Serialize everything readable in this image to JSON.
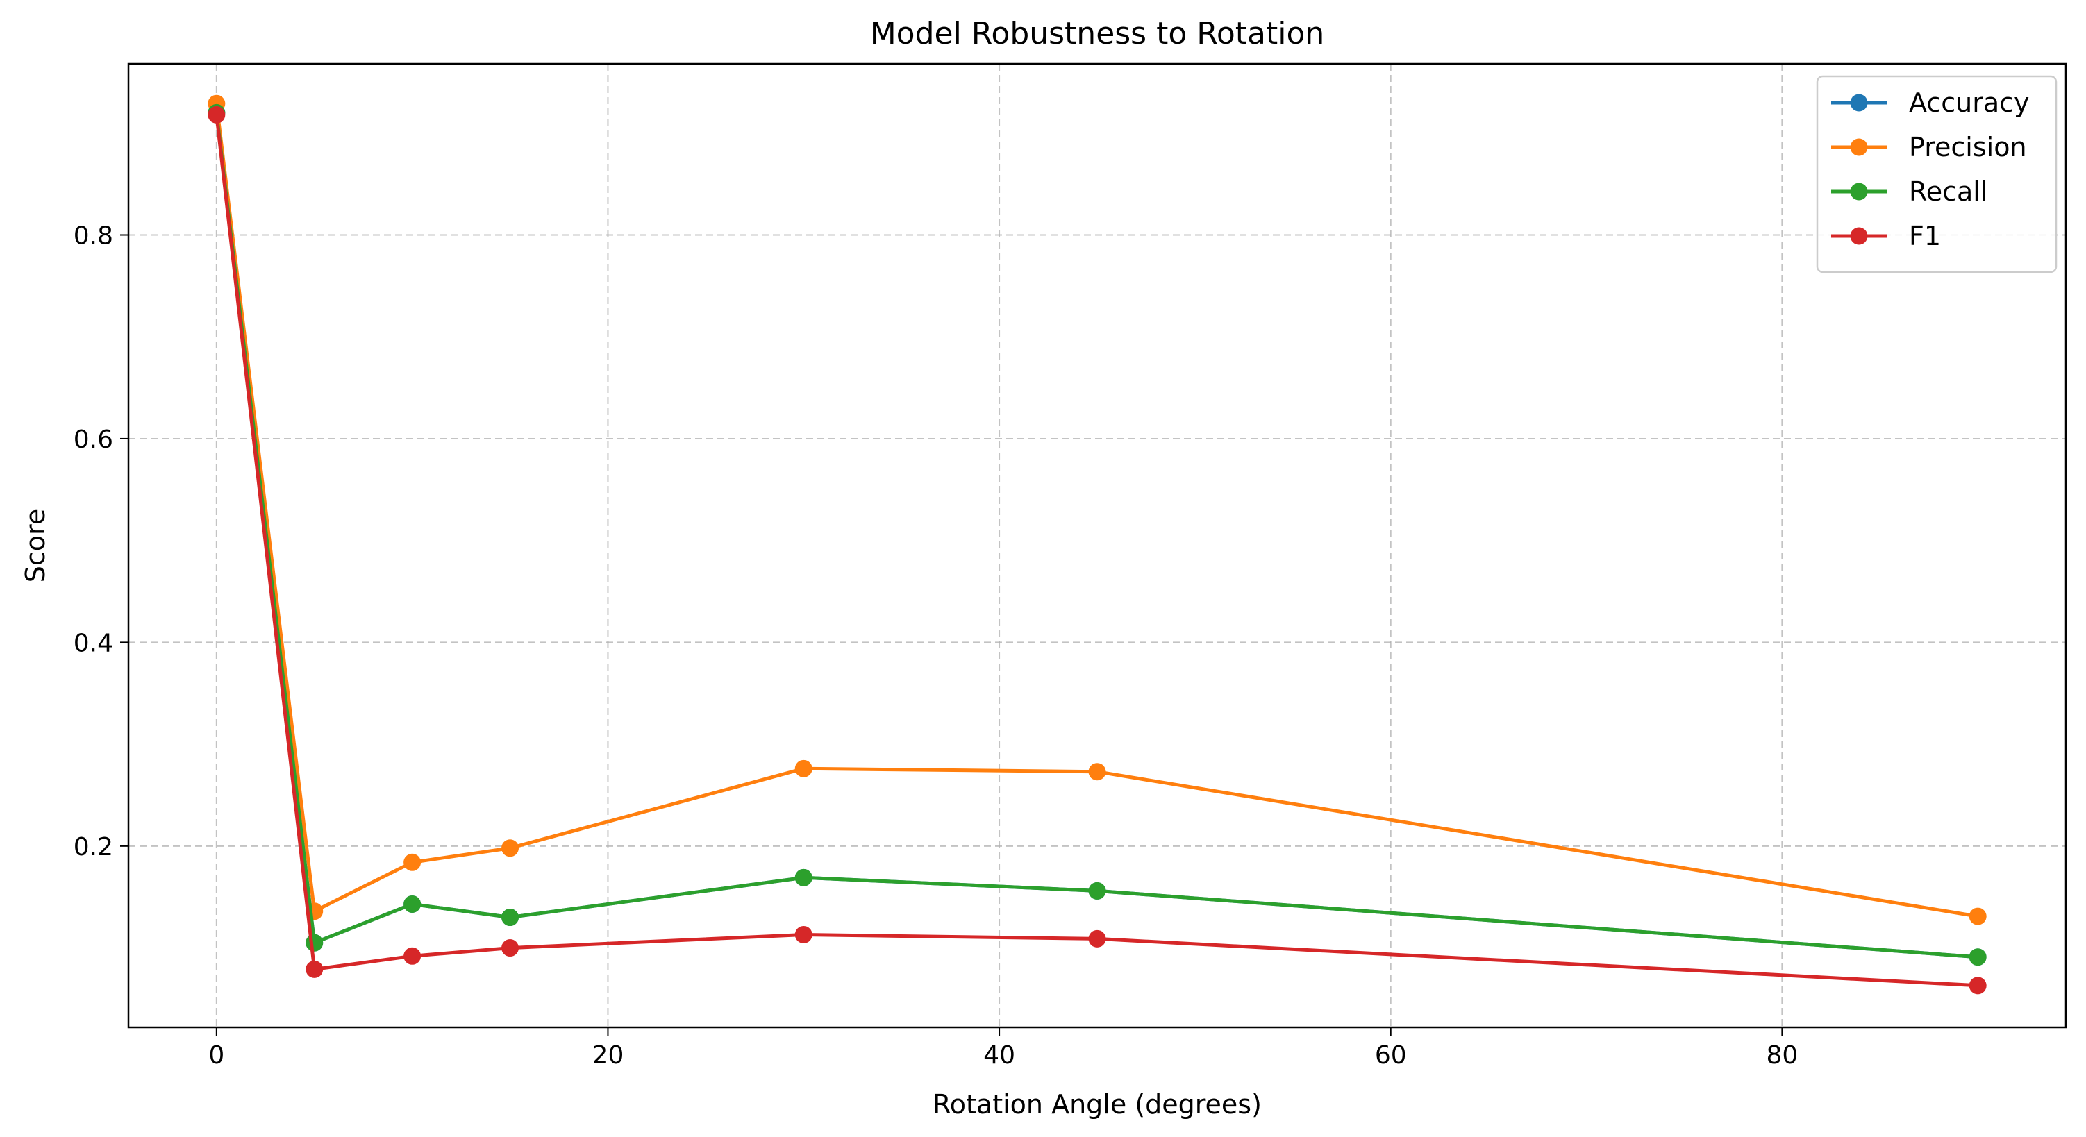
{
  "chart_data": {
    "type": "line",
    "title": "Model Robustness to Rotation",
    "xlabel": "Rotation Angle (degrees)",
    "ylabel": "Score",
    "x": [
      0,
      5,
      10,
      15,
      30,
      45,
      90
    ],
    "xlim": [
      -4.5,
      94.5
    ],
    "ylim": [
      0.022,
      0.968
    ],
    "xticks": [
      0,
      20,
      40,
      60,
      80
    ],
    "xtick_labels": [
      "0",
      "20",
      "40",
      "60",
      "80"
    ],
    "yticks": [
      0.2,
      0.4,
      0.6,
      0.8
    ],
    "ytick_labels": [
      "0.2",
      "0.4",
      "0.6",
      "0.8"
    ],
    "grid": true,
    "legend_position": "top-right",
    "series": [
      {
        "name": "Accuracy",
        "color": "#1f77b4",
        "values": [
          0.92,
          0.105,
          0.143,
          0.13,
          0.169,
          0.156,
          0.091
        ]
      },
      {
        "name": "Precision",
        "color": "#ff7f0e",
        "values": [
          0.929,
          0.136,
          0.184,
          0.198,
          0.276,
          0.273,
          0.131
        ]
      },
      {
        "name": "Recall",
        "color": "#2ca02c",
        "values": [
          0.92,
          0.105,
          0.143,
          0.13,
          0.169,
          0.156,
          0.091
        ]
      },
      {
        "name": "F1",
        "color": "#d62728",
        "values": [
          0.918,
          0.079,
          0.092,
          0.1,
          0.113,
          0.109,
          0.063
        ]
      }
    ]
  }
}
